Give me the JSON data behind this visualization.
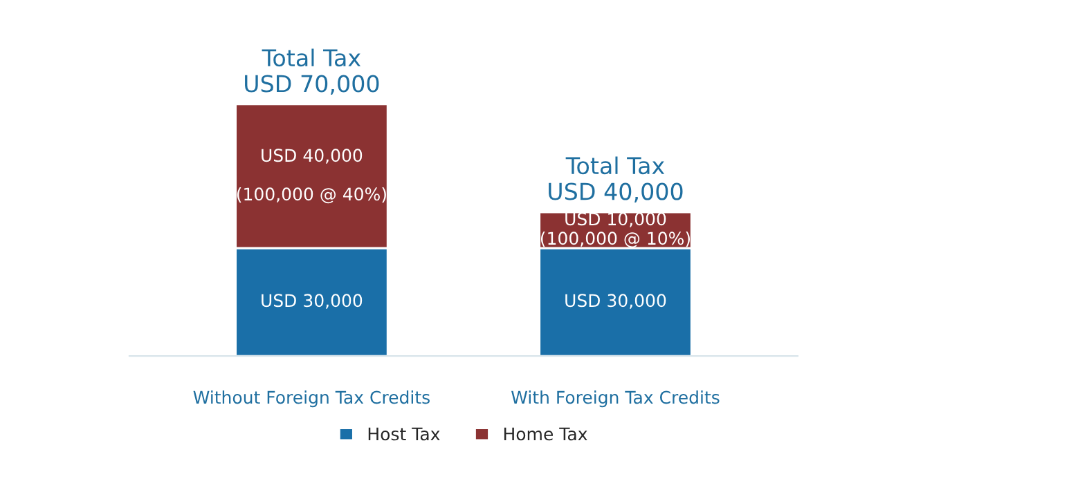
{
  "chart_data": {
    "type": "bar",
    "stacked": true,
    "categories": [
      "Without Foreign Tax Credits",
      "With Foreign Tax Credits"
    ],
    "series": [
      {
        "name": "Host Tax",
        "color": "#1a6fa8",
        "values": [
          30000,
          30000
        ],
        "value_labels": [
          "USD 30,000",
          "USD 30,000"
        ]
      },
      {
        "name": "Home Tax",
        "color": "#8b3232",
        "values": [
          40000,
          10000
        ],
        "value_labels": [
          "USD 40,000\n\n(100,000 @ 40%)",
          "USD 10,000\n(100,000 @ 10%)"
        ]
      }
    ],
    "totals": [
      "Total Tax\nUSD 70,000",
      "Total Tax\nUSD 40,000"
    ],
    "legend": "bottom",
    "grid": false
  }
}
